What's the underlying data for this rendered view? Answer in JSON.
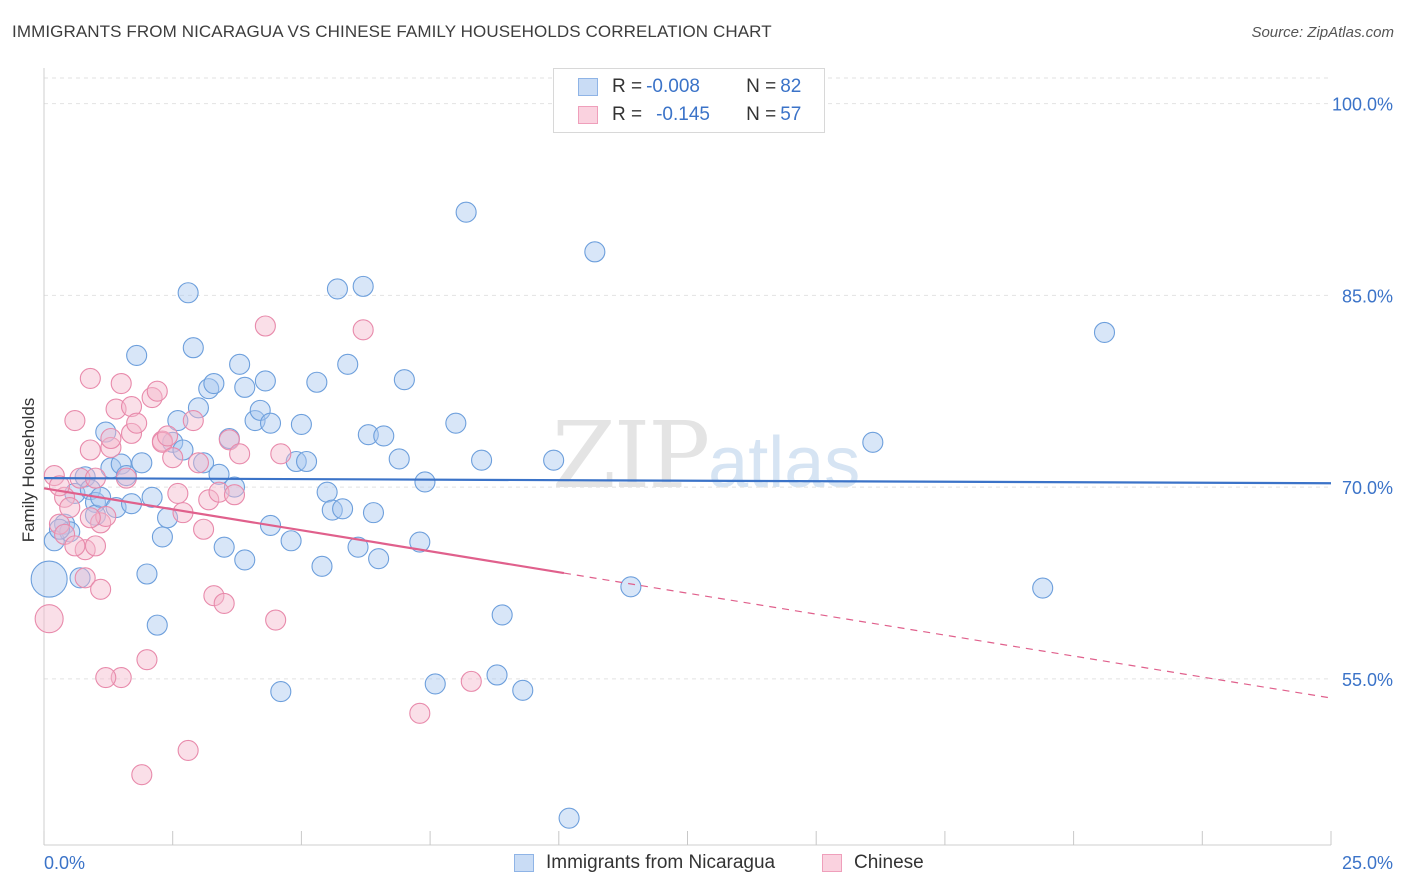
{
  "title": "IMMIGRANTS FROM NICARAGUA VS CHINESE FAMILY HOUSEHOLDS CORRELATION CHART",
  "source": "Source: ZipAtlas.com",
  "watermark": {
    "zip": "ZIP",
    "atlas": "atlas"
  },
  "legend": {
    "rows": [
      {
        "r_label": "R = ",
        "r_value": "-0.008",
        "n_label": "N = ",
        "n_value": "82",
        "color": "#a9c8ef"
      },
      {
        "r_label": "R = ",
        "r_value": "-0.145",
        "n_label": "N = ",
        "n_value": "57",
        "color": "#f5b8cc"
      }
    ]
  },
  "bottom_legend": [
    {
      "label": "Immigrants from Nicaragua",
      "color": "#a9c8ef"
    },
    {
      "label": "Chinese",
      "color": "#f5b8cc"
    }
  ],
  "colors": {
    "blue_fill": "#a9c8ef",
    "blue_stroke": "#6d9fdc",
    "blue_line": "#3b73c8",
    "pink_fill": "#f5b8cc",
    "pink_stroke": "#e88aab",
    "pink_line": "#e0608c",
    "axis_text": "#3b73c8"
  },
  "chart_data": {
    "type": "scatter",
    "title": "IMMIGRANTS FROM NICARAGUA VS CHINESE FAMILY HOUSEHOLDS CORRELATION CHART",
    "xlabel": "",
    "ylabel": "Family Households",
    "xlim": [
      0,
      25
    ],
    "ylim": [
      42,
      102
    ],
    "x_tick_labels": [
      "0.0%",
      "25.0%"
    ],
    "y_ticks": [
      55,
      70,
      85,
      100
    ],
    "y_tick_labels": [
      "55.0%",
      "70.0%",
      "85.0%",
      "100.0%"
    ],
    "grid": true,
    "series": [
      {
        "name": "Immigrants from Nicaragua",
        "R": -0.008,
        "N": 82,
        "trend": {
          "x0": 0,
          "y0": 70.7,
          "x1": 25,
          "y1": 70.3,
          "dashed_from": null
        },
        "points": [
          [
            0.1,
            62.8,
            18
          ],
          [
            0.2,
            65.8,
            10
          ],
          [
            0.4,
            67.1,
            10
          ],
          [
            0.5,
            66.5,
            10
          ],
          [
            0.6,
            69.5,
            10
          ],
          [
            0.7,
            62.9,
            10
          ],
          [
            0.8,
            70.8,
            10
          ],
          [
            0.9,
            69.8,
            10
          ],
          [
            1.0,
            68.8,
            10
          ],
          [
            1.0,
            67.8,
            10
          ],
          [
            1.1,
            69.2,
            10
          ],
          [
            1.2,
            74.3,
            10
          ],
          [
            1.3,
            71.5,
            10
          ],
          [
            1.4,
            68.4,
            10
          ],
          [
            1.5,
            71.8,
            10
          ],
          [
            1.6,
            70.9,
            10
          ],
          [
            1.7,
            68.7,
            10
          ],
          [
            1.8,
            80.3,
            10
          ],
          [
            1.9,
            71.9,
            10
          ],
          [
            2.0,
            63.2,
            10
          ],
          [
            2.1,
            69.2,
            10
          ],
          [
            2.2,
            59.2,
            10
          ],
          [
            2.3,
            66.1,
            10
          ],
          [
            2.4,
            67.6,
            10
          ],
          [
            2.5,
            73.5,
            10
          ],
          [
            2.6,
            75.2,
            10
          ],
          [
            2.7,
            72.9,
            10
          ],
          [
            2.8,
            85.2,
            10
          ],
          [
            2.9,
            80.9,
            10
          ],
          [
            3.0,
            76.2,
            10
          ],
          [
            3.1,
            71.9,
            10
          ],
          [
            3.2,
            77.7,
            10
          ],
          [
            3.3,
            78.1,
            10
          ],
          [
            3.4,
            71.0,
            10
          ],
          [
            3.5,
            65.3,
            10
          ],
          [
            3.6,
            73.8,
            10
          ],
          [
            3.7,
            70.0,
            10
          ],
          [
            3.8,
            79.6,
            10
          ],
          [
            3.9,
            64.3,
            10
          ],
          [
            3.9,
            77.8,
            10
          ],
          [
            4.1,
            75.2,
            10
          ],
          [
            4.2,
            76.0,
            10
          ],
          [
            4.3,
            78.3,
            10
          ],
          [
            4.4,
            75.0,
            10
          ],
          [
            4.4,
            67.0,
            10
          ],
          [
            4.6,
            54.0,
            10
          ],
          [
            4.8,
            65.8,
            10
          ],
          [
            4.9,
            72.0,
            10
          ],
          [
            5.0,
            74.9,
            10
          ],
          [
            5.1,
            72.0,
            10
          ],
          [
            5.3,
            78.2,
            10
          ],
          [
            5.4,
            63.8,
            10
          ],
          [
            5.5,
            69.6,
            10
          ],
          [
            5.6,
            68.2,
            10
          ],
          [
            5.7,
            85.5,
            10
          ],
          [
            5.8,
            68.3,
            10
          ],
          [
            5.9,
            79.6,
            10
          ],
          [
            6.1,
            65.3,
            10
          ],
          [
            6.2,
            85.7,
            10
          ],
          [
            6.3,
            74.1,
            10
          ],
          [
            6.4,
            68.0,
            10
          ],
          [
            6.5,
            64.4,
            10
          ],
          [
            6.6,
            74.0,
            10
          ],
          [
            6.9,
            72.2,
            10
          ],
          [
            7.0,
            78.4,
            10
          ],
          [
            7.3,
            65.7,
            10
          ],
          [
            7.4,
            70.4,
            10
          ],
          [
            7.6,
            54.6,
            10
          ],
          [
            8.0,
            75.0,
            10
          ],
          [
            8.2,
            91.5,
            10
          ],
          [
            8.5,
            72.1,
            10
          ],
          [
            8.8,
            55.3,
            10
          ],
          [
            8.9,
            60.0,
            10
          ],
          [
            9.3,
            54.1,
            10
          ],
          [
            9.9,
            72.1,
            10
          ],
          [
            10.2,
            44.1,
            10
          ],
          [
            10.7,
            88.4,
            10
          ],
          [
            11.4,
            62.2,
            10
          ],
          [
            16.1,
            73.5,
            10
          ],
          [
            19.4,
            62.1,
            10
          ],
          [
            20.6,
            82.1,
            10
          ],
          [
            0.3,
            66.7,
            10
          ]
        ]
      },
      {
        "name": "Chinese",
        "R": -0.145,
        "N": 57,
        "trend": {
          "x0": 0,
          "y0": 69.9,
          "x1": 25,
          "y1": 53.5,
          "dashed_from": 10.1
        },
        "points": [
          [
            0.1,
            59.7,
            14
          ],
          [
            0.2,
            70.9,
            10
          ],
          [
            0.3,
            67.1,
            10
          ],
          [
            0.4,
            69.2,
            10
          ],
          [
            0.4,
            66.3,
            10
          ],
          [
            0.5,
            68.4,
            10
          ],
          [
            0.6,
            75.2,
            10
          ],
          [
            0.7,
            70.7,
            10
          ],
          [
            0.8,
            65.1,
            10
          ],
          [
            0.8,
            62.9,
            10
          ],
          [
            0.9,
            78.5,
            10
          ],
          [
            0.9,
            72.9,
            10
          ],
          [
            1.0,
            70.7,
            10
          ],
          [
            1.0,
            65.4,
            10
          ],
          [
            1.1,
            62.0,
            10
          ],
          [
            1.1,
            67.2,
            10
          ],
          [
            1.2,
            67.7,
            10
          ],
          [
            1.3,
            73.1,
            10
          ],
          [
            1.3,
            73.8,
            10
          ],
          [
            1.4,
            76.1,
            10
          ],
          [
            1.5,
            78.1,
            10
          ],
          [
            1.5,
            55.1,
            10
          ],
          [
            1.6,
            70.7,
            10
          ],
          [
            1.7,
            76.3,
            10
          ],
          [
            1.7,
            74.2,
            10
          ],
          [
            1.8,
            75.0,
            10
          ],
          [
            1.9,
            47.5,
            10
          ],
          [
            2.0,
            56.5,
            10
          ],
          [
            2.1,
            77.0,
            10
          ],
          [
            2.2,
            77.5,
            10
          ],
          [
            2.3,
            73.6,
            10
          ],
          [
            2.3,
            73.5,
            10
          ],
          [
            2.4,
            74.0,
            10
          ],
          [
            2.5,
            72.3,
            10
          ],
          [
            2.6,
            69.5,
            10
          ],
          [
            2.7,
            68.0,
            10
          ],
          [
            2.8,
            49.4,
            10
          ],
          [
            2.9,
            75.2,
            10
          ],
          [
            3.0,
            71.9,
            10
          ],
          [
            3.1,
            66.7,
            10
          ],
          [
            3.2,
            69.0,
            10
          ],
          [
            3.3,
            61.5,
            10
          ],
          [
            3.4,
            69.6,
            10
          ],
          [
            3.5,
            60.9,
            10
          ],
          [
            3.6,
            73.7,
            10
          ],
          [
            3.7,
            69.4,
            10
          ],
          [
            3.8,
            72.6,
            10
          ],
          [
            4.3,
            82.6,
            10
          ],
          [
            4.5,
            59.6,
            10
          ],
          [
            4.6,
            72.6,
            10
          ],
          [
            6.2,
            82.3,
            10
          ],
          [
            7.3,
            52.3,
            10
          ],
          [
            8.3,
            54.8,
            10
          ],
          [
            0.6,
            65.4,
            10
          ],
          [
            1.2,
            55.1,
            10
          ],
          [
            0.3,
            70.1,
            10
          ],
          [
            0.9,
            67.6,
            10
          ]
        ]
      }
    ]
  }
}
